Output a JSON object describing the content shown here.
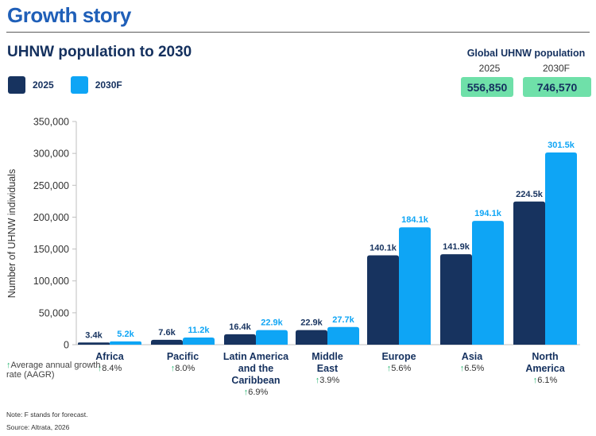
{
  "header": {
    "title": "Growth story"
  },
  "chart_title": "UHNW population to 2030",
  "legend": [
    {
      "label": "2025",
      "color": "#17335f"
    },
    {
      "label": "2030F",
      "color": "#0ea5f5"
    }
  ],
  "global": {
    "title": "Global UHNW population",
    "years": [
      "2025",
      "2030F"
    ],
    "values": [
      "556,850",
      "746,570"
    ]
  },
  "aagr_legend": {
    "arrow": "↑",
    "text": "Average annual growth rate (AAGR)"
  },
  "notes": {
    "note": "Note: F stands for forecast.",
    "source": "Source: Altrata, 2026"
  },
  "chart_data": {
    "type": "bar",
    "ylabel": "Number of UHNW individuals",
    "ylim": [
      0,
      350000
    ],
    "yticks": [
      "0",
      "50,000",
      "100,000",
      "150,000",
      "200,000",
      "250,000",
      "300,000",
      "350,000"
    ],
    "yticks_values": [
      0,
      50000,
      100000,
      150000,
      200000,
      250000,
      300000,
      350000
    ],
    "categories": [
      {
        "label_lines": [
          "Africa"
        ],
        "growth": "8.4%"
      },
      {
        "label_lines": [
          "Pacific"
        ],
        "growth": "8.0%"
      },
      {
        "label_lines": [
          "Latin America",
          "and the",
          "Caribbean"
        ],
        "growth": "6.9%"
      },
      {
        "label_lines": [
          "Middle",
          "East"
        ],
        "growth": "3.9%"
      },
      {
        "label_lines": [
          "Europe"
        ],
        "growth": "5.6%"
      },
      {
        "label_lines": [
          "Asia"
        ],
        "growth": "6.5%"
      },
      {
        "label_lines": [
          "North",
          "America"
        ],
        "growth": "6.1%"
      }
    ],
    "series": [
      {
        "name": "2025",
        "color": "#17335f",
        "label_color": "#17335f",
        "values": [
          3400,
          7600,
          16400,
          22900,
          140100,
          141900,
          224500
        ],
        "labels": [
          "3.4k",
          "7.6k",
          "16.4k",
          "22.9k",
          "140.1k",
          "141.9k",
          "224.5k"
        ]
      },
      {
        "name": "2030F",
        "color": "#0ea5f5",
        "label_color": "#0ea5f5",
        "values": [
          5200,
          11200,
          22900,
          27700,
          184100,
          194100,
          301500
        ],
        "labels": [
          "5.2k",
          "11.2k",
          "22.9k",
          "27.7k",
          "184.1k",
          "194.1k",
          "301.5k"
        ]
      }
    ],
    "grid": false,
    "legend_position": "top-left"
  }
}
